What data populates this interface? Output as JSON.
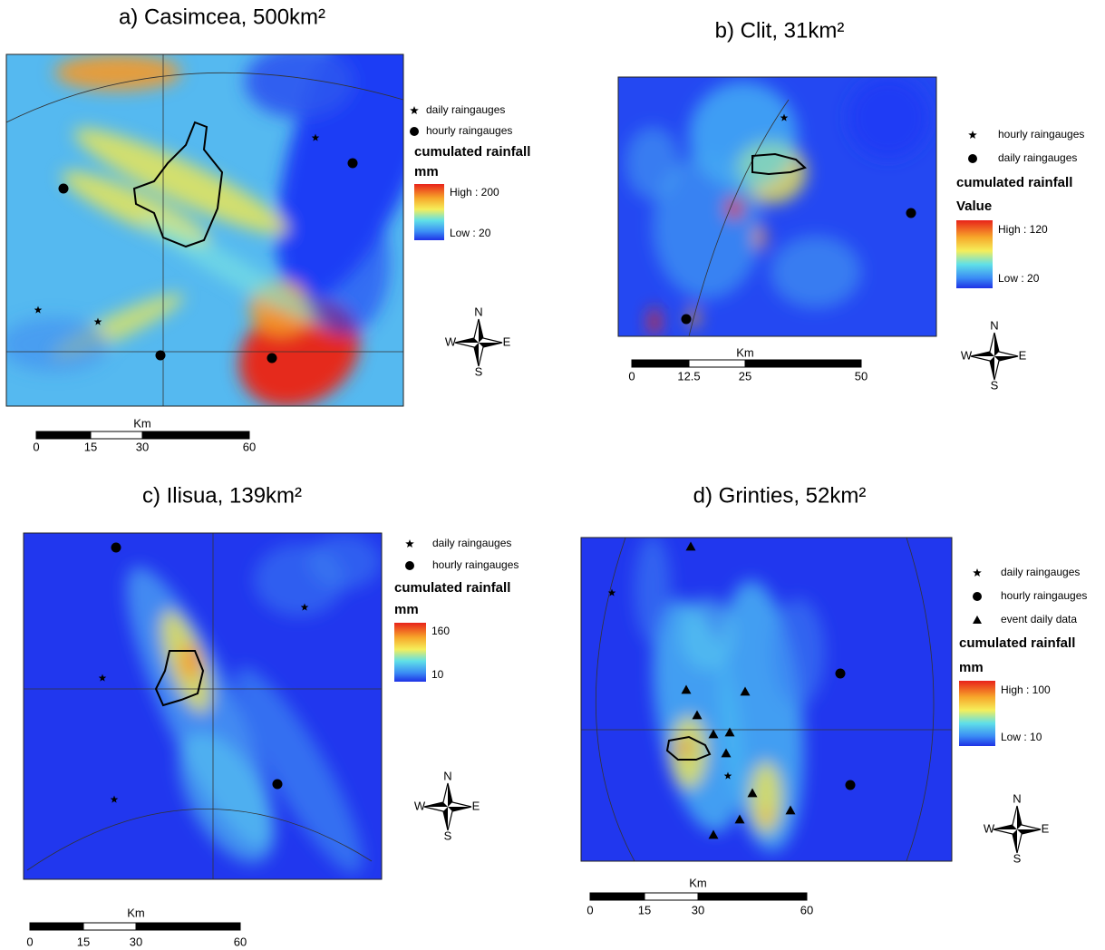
{
  "panels": [
    {
      "title": "a) Casimcea, 500km²",
      "legend": {
        "items": [
          "daily raingauges",
          "hourly raingauges"
        ],
        "title": "cumulated rainfall",
        "unit": "mm",
        "high": "High : 200",
        "low": "Low : 20"
      },
      "scale": {
        "unit": "Km",
        "labels": [
          "0",
          "15",
          "30",
          "60"
        ]
      },
      "compass": {
        "n": "N",
        "s": "S",
        "e": "E",
        "w": "W"
      }
    },
    {
      "title": "b) Clit, 31km²",
      "legend": {
        "items": [
          "hourly raingauges",
          "daily raingauges"
        ],
        "title": "cumulated rainfall",
        "unit": "Value",
        "high": "High : 120",
        "low": "Low : 20"
      },
      "scale": {
        "unit": "Km",
        "labels": [
          "0",
          "12.5",
          "25",
          "50"
        ]
      },
      "compass": {
        "n": "N",
        "s": "S",
        "e": "E",
        "w": "W"
      }
    },
    {
      "title": "c) Ilisua, 139km²",
      "legend": {
        "items": [
          "daily raingauges",
          "hourly raingauges"
        ],
        "title": "cumulated rainfall",
        "unit": "mm",
        "high": "160",
        "low": "10"
      },
      "scale": {
        "unit": "Km",
        "labels": [
          "0",
          "15",
          "30",
          "60"
        ]
      },
      "compass": {
        "n": "N",
        "s": "S",
        "e": "E",
        "w": "W"
      }
    },
    {
      "title": "d) Grinties, 52km²",
      "legend": {
        "items": [
          "daily raingauges",
          "hourly raingauges",
          "event daily data"
        ],
        "title": "cumulated rainfall",
        "unit": "mm",
        "high": "High : 100",
        "low": "Low : 10"
      },
      "scale": {
        "unit": "Km",
        "labels": [
          "0",
          "15",
          "30",
          "60"
        ]
      },
      "compass": {
        "n": "N",
        "s": "S",
        "e": "E",
        "w": "W"
      }
    }
  ]
}
